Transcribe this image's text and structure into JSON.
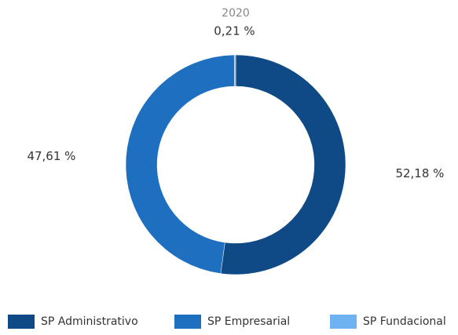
{
  "chart_data": {
    "type": "donut",
    "title": "2020",
    "categories": [
      "SP Administrativo",
      "SP Empresarial",
      "SP Fundacional"
    ],
    "values": [
      52.18,
      47.61,
      0.21
    ],
    "value_labels": [
      "52,18 %",
      "47,61 %",
      "0,21 %"
    ],
    "colors": [
      "#0f4a86",
      "#1f6fc1",
      "#6fb2f2"
    ],
    "legend": "bottom"
  }
}
